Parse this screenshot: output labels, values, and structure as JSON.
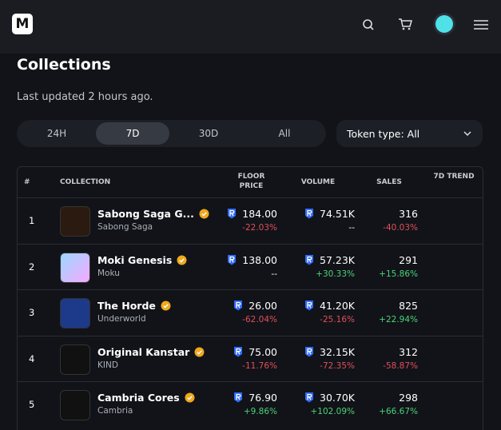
{
  "header": {
    "logo": "M"
  },
  "page": {
    "title": "Collections",
    "updated": "Last updated 2 hours ago."
  },
  "tabs": [
    {
      "label": "24H",
      "selected": false
    },
    {
      "label": "7D",
      "selected": true
    },
    {
      "label": "30D",
      "selected": false
    },
    {
      "label": "All",
      "selected": false
    }
  ],
  "filter": {
    "label": "Token type: All"
  },
  "table": {
    "headers": [
      "#",
      "COLLECTION",
      "FLOOR PRICE",
      "VOLUME",
      "SALES",
      "7D TREND"
    ],
    "rows": [
      {
        "rank": "1",
        "name": "Sabong Saga G...",
        "subtitle": "Sabong Saga",
        "floor": "184.00",
        "floor_change": "-22.03%",
        "volume": "74.51K",
        "volume_change": "--",
        "sales": "316",
        "sales_change": "-40.03%"
      },
      {
        "rank": "2",
        "name": "Moki Genesis",
        "subtitle": "Moku",
        "floor": "138.00",
        "floor_change": "--",
        "volume": "57.23K",
        "volume_change": "+30.33%",
        "sales": "291",
        "sales_change": "+15.86%"
      },
      {
        "rank": "3",
        "name": "The Horde",
        "subtitle": "Underworld",
        "floor": "26.00",
        "floor_change": "-62.04%",
        "volume": "41.20K",
        "volume_change": "-25.16%",
        "sales": "825",
        "sales_change": "+22.94%"
      },
      {
        "rank": "4",
        "name": "Original Kanstar",
        "subtitle": "KIND",
        "floor": "75.00",
        "floor_change": "-11.76%",
        "volume": "32.15K",
        "volume_change": "-72.35%",
        "sales": "312",
        "sales_change": "-58.87%"
      },
      {
        "rank": "5",
        "name": "Cambria Cores",
        "subtitle": "Cambria",
        "floor": "76.90",
        "floor_change": "+9.86%",
        "volume": "30.70K",
        "volume_change": "+102.09%",
        "sales": "298",
        "sales_change": "+66.67%"
      }
    ]
  }
}
